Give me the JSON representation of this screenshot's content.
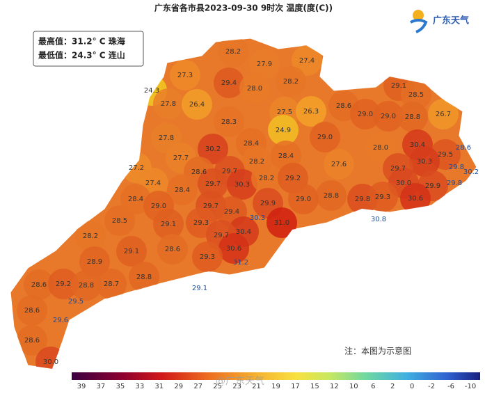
{
  "header": {
    "title": "广东省各市县2023-09-30 9时次 温度(度(C))"
  },
  "summary": {
    "max": "最高值：31.2° C 珠海",
    "min": "最低值：24.3° C 连山"
  },
  "logo": "广东天气",
  "note": "注：本图为示意图",
  "watermark": "@广东天气",
  "labels": [
    "28.2",
    "27.4",
    "27.9",
    "27.3",
    "29.4",
    "28.0",
    "28.2",
    "29.1",
    "24.3",
    "28.5",
    "27.8",
    "26.4",
    "28.6",
    "27.5",
    "26.3",
    "29.0",
    "29.0",
    "28.8",
    "26.7",
    "28.3",
    "24.9",
    "29.0",
    "27.8",
    "28.4",
    "30.4",
    "28.6",
    "30.2",
    "28.0",
    "29.5",
    "27.7",
    "28.2",
    "28.4",
    "30.3",
    "27.6",
    "27.2",
    "28.6",
    "29.7",
    "29.7",
    "29.8",
    "30.2",
    "27.4",
    "29.7",
    "30.3",
    "28.2",
    "29.2",
    "30.0",
    "29.9",
    "29.8",
    "28.4",
    "28.4",
    "28.8",
    "29.8",
    "29.3",
    "30.6",
    "29.0",
    "29.0",
    "29.7",
    "29.9",
    "29.4",
    "28.5",
    "29.1",
    "29.3",
    "30.3",
    "31.0",
    "30.8",
    "30.4",
    "28.2",
    "29.7",
    "29.1",
    "28.6",
    "30.6",
    "29.3",
    "31.2",
    "28.9",
    "28.8",
    "28.6",
    "29.2",
    "28.8",
    "28.7",
    "29.1",
    "29.5",
    "28.6",
    "29.6",
    "28.6",
    "30.0"
  ],
  "colorbar": [
    "39",
    "37",
    "35",
    "33",
    "31",
    "29",
    "27",
    "25",
    "23",
    "21",
    "19",
    "17",
    "15",
    "12",
    "10",
    "6",
    "2",
    "0",
    "-2",
    "-6",
    "-10"
  ]
}
